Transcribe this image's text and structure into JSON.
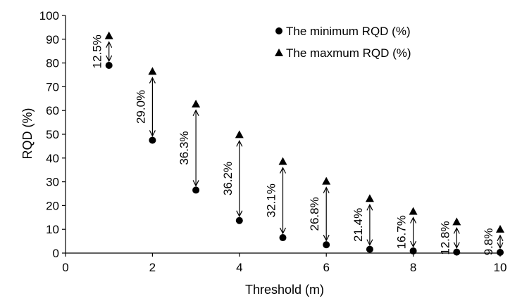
{
  "chart_data": {
    "type": "scatter",
    "title": "",
    "xlabel": "Threshold (m)",
    "ylabel": "RQD (%)",
    "xlim": [
      0,
      10
    ],
    "ylim": [
      0,
      100
    ],
    "x_ticks": [
      "0",
      "2",
      "4",
      "6",
      "8",
      "10"
    ],
    "y_ticks": [
      "0",
      "10",
      "20",
      "30",
      "40",
      "50",
      "60",
      "70",
      "80",
      "90",
      "100"
    ],
    "grid": false,
    "legend_position": "top-right",
    "x": [
      1,
      2,
      3,
      4,
      5,
      6,
      7,
      8,
      9,
      10
    ],
    "series": [
      {
        "name": "The minimum RQD (%)",
        "marker": "circle",
        "values": [
          79,
          47.5,
          26.5,
          13.7,
          6.5,
          3.5,
          1.6,
          0.9,
          0.4,
          0.3
        ]
      },
      {
        "name": "The maxmum RQD (%)",
        "marker": "triangle",
        "values": [
          91.5,
          76.5,
          62.8,
          49.9,
          38.6,
          30.3,
          23.0,
          17.6,
          13.2,
          10.1
        ]
      }
    ],
    "annotations": [
      "12.5%",
      "29.0%",
      "36.3%",
      "36.2%",
      "32.1%",
      "26.8%",
      "21.4%",
      "16.7%",
      "12.8%",
      "9.8%"
    ]
  }
}
